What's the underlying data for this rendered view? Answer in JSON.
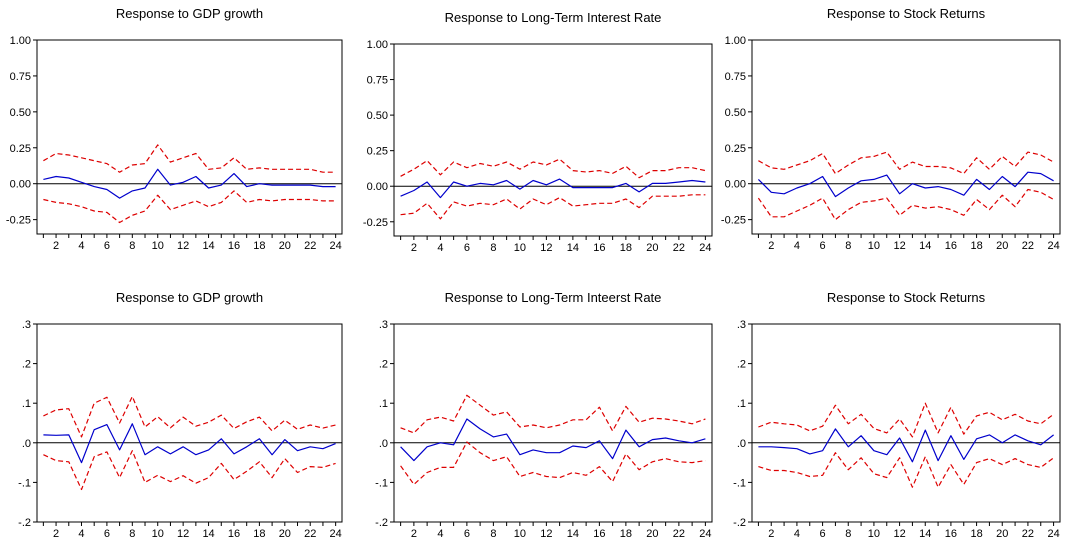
{
  "chart_data": [
    {
      "type": "line",
      "title": "Response to GDP growth",
      "xlabel": "",
      "ylabel": "",
      "x": [
        1,
        2,
        3,
        4,
        5,
        6,
        7,
        8,
        9,
        10,
        11,
        12,
        13,
        14,
        15,
        16,
        17,
        18,
        19,
        20,
        21,
        22,
        23,
        24
      ],
      "xticks": [
        "2",
        "4",
        "6",
        "8",
        "10",
        "12",
        "14",
        "16",
        "18",
        "20",
        "22",
        "24"
      ],
      "yticks": [
        "1.00",
        "0.75",
        "0.50",
        "0.25",
        "0.00",
        "-0.25"
      ],
      "ylim": [
        -0.35,
        1.0
      ],
      "grid": false,
      "series": [
        {
          "color": "#0000cc",
          "style": "solid",
          "values": [
            0.03,
            0.05,
            0.04,
            0.01,
            -0.02,
            -0.04,
            -0.1,
            -0.05,
            -0.03,
            0.1,
            -0.01,
            0.01,
            0.05,
            -0.03,
            -0.01,
            0.07,
            -0.02,
            0.0,
            -0.01,
            -0.01,
            -0.01,
            -0.01,
            -0.02,
            -0.02
          ]
        },
        {
          "color": "#dd0000",
          "style": "dashed",
          "values": [
            0.16,
            0.21,
            0.2,
            0.18,
            0.16,
            0.14,
            0.08,
            0.13,
            0.14,
            0.27,
            0.15,
            0.18,
            0.21,
            0.1,
            0.11,
            0.18,
            0.1,
            0.11,
            0.1,
            0.1,
            0.1,
            0.1,
            0.08,
            0.08
          ]
        },
        {
          "color": "#dd0000",
          "style": "dashed",
          "values": [
            -0.11,
            -0.13,
            -0.14,
            -0.16,
            -0.19,
            -0.2,
            -0.27,
            -0.22,
            -0.19,
            -0.08,
            -0.18,
            -0.15,
            -0.12,
            -0.16,
            -0.13,
            -0.05,
            -0.13,
            -0.11,
            -0.12,
            -0.11,
            -0.11,
            -0.11,
            -0.12,
            -0.12
          ]
        }
      ]
    },
    {
      "type": "line",
      "title": "Response to Long-Term Interest Rate",
      "xlabel": "",
      "ylabel": "",
      "x": [
        1,
        2,
        3,
        4,
        5,
        6,
        7,
        8,
        9,
        10,
        11,
        12,
        13,
        14,
        15,
        16,
        17,
        18,
        19,
        20,
        21,
        22,
        23,
        24
      ],
      "xticks": [
        "2",
        "4",
        "6",
        "8",
        "10",
        "12",
        "14",
        "16",
        "18",
        "20",
        "22",
        "24"
      ],
      "yticks": [
        "1.00",
        "0.75",
        "0.50",
        "0.25",
        "0.00",
        "-0.25"
      ],
      "ylim": [
        -0.35,
        1.0
      ],
      "grid": false,
      "series": [
        {
          "color": "#0000cc",
          "style": "solid",
          "values": [
            -0.07,
            -0.03,
            0.03,
            -0.08,
            0.03,
            0.0,
            0.02,
            0.01,
            0.04,
            -0.02,
            0.04,
            0.01,
            0.05,
            -0.01,
            -0.01,
            -0.01,
            -0.01,
            0.02,
            -0.04,
            0.02,
            0.02,
            0.03,
            0.04,
            0.03
          ]
        },
        {
          "color": "#dd0000",
          "style": "dashed",
          "values": [
            0.07,
            0.12,
            0.18,
            0.08,
            0.17,
            0.13,
            0.16,
            0.14,
            0.17,
            0.12,
            0.17,
            0.15,
            0.19,
            0.11,
            0.1,
            0.11,
            0.09,
            0.14,
            0.06,
            0.11,
            0.11,
            0.13,
            0.13,
            0.11
          ]
        },
        {
          "color": "#dd0000",
          "style": "dashed",
          "values": [
            -0.2,
            -0.19,
            -0.12,
            -0.23,
            -0.11,
            -0.14,
            -0.12,
            -0.13,
            -0.09,
            -0.16,
            -0.09,
            -0.13,
            -0.08,
            -0.14,
            -0.13,
            -0.12,
            -0.12,
            -0.09,
            -0.15,
            -0.07,
            -0.07,
            -0.07,
            -0.06,
            -0.06
          ]
        }
      ]
    },
    {
      "type": "line",
      "title": "Response to Stock Returns",
      "xlabel": "",
      "ylabel": "",
      "x": [
        1,
        2,
        3,
        4,
        5,
        6,
        7,
        8,
        9,
        10,
        11,
        12,
        13,
        14,
        15,
        16,
        17,
        18,
        19,
        20,
        21,
        22,
        23,
        24
      ],
      "xticks": [
        "2",
        "4",
        "6",
        "8",
        "10",
        "12",
        "14",
        "16",
        "18",
        "20",
        "22",
        "24"
      ],
      "yticks": [
        "1.00",
        "0.75",
        "0.50",
        "0.25",
        "0.00",
        "-0.25"
      ],
      "ylim": [
        -0.35,
        1.0
      ],
      "grid": false,
      "series": [
        {
          "color": "#0000cc",
          "style": "solid",
          "values": [
            0.03,
            -0.06,
            -0.07,
            -0.03,
            0.0,
            0.05,
            -0.09,
            -0.03,
            0.02,
            0.03,
            0.06,
            -0.07,
            0.0,
            -0.03,
            -0.02,
            -0.04,
            -0.08,
            0.03,
            -0.04,
            0.05,
            -0.02,
            0.08,
            0.07,
            0.02
          ]
        },
        {
          "color": "#dd0000",
          "style": "dashed",
          "values": [
            0.16,
            0.11,
            0.1,
            0.13,
            0.16,
            0.21,
            0.07,
            0.13,
            0.18,
            0.19,
            0.22,
            0.1,
            0.15,
            0.12,
            0.12,
            0.11,
            0.07,
            0.18,
            0.1,
            0.19,
            0.12,
            0.22,
            0.2,
            0.15
          ]
        },
        {
          "color": "#dd0000",
          "style": "dashed",
          "values": [
            -0.1,
            -0.23,
            -0.23,
            -0.19,
            -0.15,
            -0.1,
            -0.25,
            -0.18,
            -0.13,
            -0.12,
            -0.1,
            -0.22,
            -0.15,
            -0.17,
            -0.16,
            -0.18,
            -0.22,
            -0.11,
            -0.18,
            -0.08,
            -0.16,
            -0.04,
            -0.06,
            -0.11
          ]
        }
      ]
    },
    {
      "type": "line",
      "title": "Response to GDP growth",
      "xlabel": "",
      "ylabel": "",
      "x": [
        1,
        2,
        3,
        4,
        5,
        6,
        7,
        8,
        9,
        10,
        11,
        12,
        13,
        14,
        15,
        16,
        17,
        18,
        19,
        20,
        21,
        22,
        23,
        24
      ],
      "xticks": [
        "2",
        "4",
        "6",
        "8",
        "10",
        "12",
        "14",
        "16",
        "18",
        "20",
        "22",
        "24"
      ],
      "yticks": [
        ".3",
        ".2",
        ".1",
        ".0",
        "-.1",
        "-.2"
      ],
      "ylim": [
        -0.2,
        0.3
      ],
      "grid": false,
      "series": [
        {
          "color": "#0000cc",
          "style": "solid",
          "values": [
            0.02,
            0.019,
            0.02,
            -0.05,
            0.033,
            0.046,
            -0.018,
            0.048,
            -0.03,
            -0.01,
            -0.028,
            -0.01,
            -0.03,
            -0.018,
            0.01,
            -0.028,
            -0.01,
            0.01,
            -0.03,
            0.008,
            -0.02,
            -0.01,
            -0.015,
            -0.002
          ]
        },
        {
          "color": "#dd0000",
          "style": "dashed",
          "values": [
            0.068,
            0.083,
            0.086,
            0.015,
            0.1,
            0.115,
            0.05,
            0.117,
            0.04,
            0.066,
            0.038,
            0.065,
            0.042,
            0.052,
            0.07,
            0.036,
            0.053,
            0.065,
            0.03,
            0.057,
            0.034,
            0.045,
            0.037,
            0.045
          ]
        },
        {
          "color": "#dd0000",
          "style": "dashed",
          "values": [
            -0.03,
            -0.045,
            -0.048,
            -0.118,
            -0.035,
            -0.023,
            -0.088,
            -0.02,
            -0.1,
            -0.082,
            -0.098,
            -0.083,
            -0.102,
            -0.088,
            -0.052,
            -0.093,
            -0.072,
            -0.048,
            -0.088,
            -0.04,
            -0.075,
            -0.06,
            -0.062,
            -0.052
          ]
        }
      ]
    },
    {
      "type": "line",
      "title": "Response to Long-Term Inteerst Rate",
      "xlabel": "",
      "ylabel": "",
      "x": [
        1,
        2,
        3,
        4,
        5,
        6,
        7,
        8,
        9,
        10,
        11,
        12,
        13,
        14,
        15,
        16,
        17,
        18,
        19,
        20,
        21,
        22,
        23,
        24
      ],
      "xticks": [
        "2",
        "4",
        "6",
        "8",
        "10",
        "12",
        "14",
        "16",
        "18",
        "20",
        "22",
        "24"
      ],
      "yticks": [
        ".3",
        ".2",
        ".1",
        ".0",
        "-.1",
        "-.2"
      ],
      "ylim": [
        -0.2,
        0.3
      ],
      "grid": false,
      "series": [
        {
          "color": "#0000cc",
          "style": "solid",
          "values": [
            -0.01,
            -0.045,
            -0.01,
            0.0,
            -0.005,
            0.06,
            0.035,
            0.015,
            0.022,
            -0.03,
            -0.018,
            -0.025,
            -0.025,
            -0.008,
            -0.012,
            0.005,
            -0.04,
            0.032,
            -0.01,
            0.008,
            0.012,
            0.005,
            0.0,
            0.01
          ]
        },
        {
          "color": "#dd0000",
          "style": "dashed",
          "values": [
            0.038,
            0.025,
            0.058,
            0.065,
            0.055,
            0.12,
            0.095,
            0.07,
            0.078,
            0.04,
            0.045,
            0.038,
            0.045,
            0.058,
            0.058,
            0.09,
            0.03,
            0.092,
            0.052,
            0.062,
            0.06,
            0.055,
            0.048,
            0.06
          ]
        },
        {
          "color": "#dd0000",
          "style": "dashed",
          "values": [
            -0.058,
            -0.105,
            -0.075,
            -0.062,
            -0.062,
            0.002,
            -0.025,
            -0.045,
            -0.035,
            -0.085,
            -0.075,
            -0.085,
            -0.088,
            -0.075,
            -0.082,
            -0.06,
            -0.098,
            -0.028,
            -0.068,
            -0.048,
            -0.04,
            -0.048,
            -0.05,
            -0.045
          ]
        }
      ]
    },
    {
      "type": "line",
      "title": "Response to Stock Returns",
      "xlabel": "",
      "ylabel": "",
      "x": [
        1,
        2,
        3,
        4,
        5,
        6,
        7,
        8,
        9,
        10,
        11,
        12,
        13,
        14,
        15,
        16,
        17,
        18,
        19,
        20,
        21,
        22,
        23,
        24
      ],
      "xticks": [
        "2",
        "4",
        "6",
        "8",
        "10",
        "12",
        "14",
        "16",
        "18",
        "20",
        "22",
        "24"
      ],
      "yticks": [
        ".3",
        ".2",
        ".1",
        ".0",
        "-.1",
        "-.2"
      ],
      "ylim": [
        -0.2,
        0.3
      ],
      "grid": false,
      "series": [
        {
          "color": "#0000cc",
          "style": "solid",
          "values": [
            -0.01,
            -0.01,
            -0.012,
            -0.015,
            -0.028,
            -0.02,
            0.035,
            -0.01,
            0.018,
            -0.02,
            -0.03,
            0.012,
            -0.048,
            0.032,
            -0.045,
            0.018,
            -0.042,
            0.01,
            0.02,
            0.0,
            0.02,
            0.005,
            -0.005,
            0.02
          ]
        },
        {
          "color": "#dd0000",
          "style": "dashed",
          "values": [
            0.04,
            0.052,
            0.048,
            0.045,
            0.03,
            0.042,
            0.095,
            0.048,
            0.072,
            0.036,
            0.025,
            0.06,
            0.015,
            0.1,
            0.025,
            0.09,
            0.022,
            0.068,
            0.077,
            0.058,
            0.072,
            0.055,
            0.048,
            0.072
          ]
        },
        {
          "color": "#dd0000",
          "style": "dashed",
          "values": [
            -0.06,
            -0.07,
            -0.07,
            -0.075,
            -0.085,
            -0.082,
            -0.025,
            -0.068,
            -0.038,
            -0.078,
            -0.088,
            -0.038,
            -0.112,
            -0.035,
            -0.112,
            -0.055,
            -0.105,
            -0.05,
            -0.04,
            -0.055,
            -0.04,
            -0.055,
            -0.062,
            -0.038
          ]
        }
      ]
    }
  ]
}
